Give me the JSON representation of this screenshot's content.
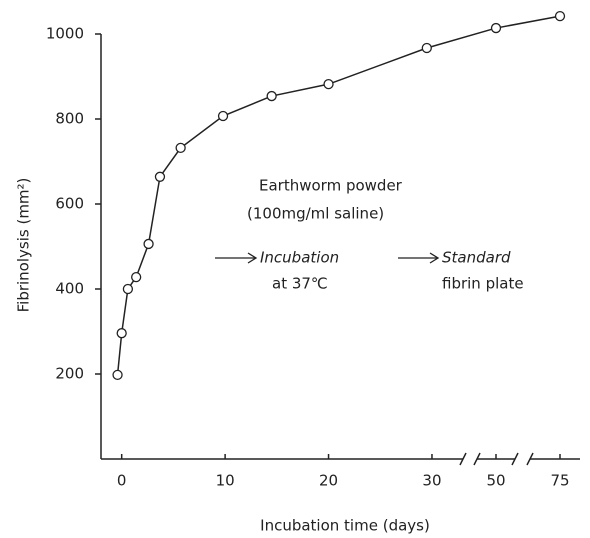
{
  "chart_data": {
    "type": "line",
    "y_label": "Fibrinolysis (mm²)",
    "x_label": "Incubation time (days)",
    "annotations": [
      "Earthworm powder",
      "(100mg/ml saline)",
      "Incubation",
      "at 37℃",
      "Standard",
      "fibrin plate"
    ],
    "x": [
      -0.4,
      0,
      0.6,
      1.4,
      2.6,
      3.7,
      5.7,
      9.8,
      14.5,
      20,
      29.5,
      50,
      75
    ],
    "series": [
      {
        "color": "#222222",
        "values": [
          198,
          296,
          400,
          428,
          506,
          664,
          732,
          807,
          854,
          882,
          967,
          1014,
          1042
        ]
      }
    ],
    "xlim": [
      -2,
      77
    ],
    "xbreaks": [
      [
        33,
        47
      ],
      [
        53,
        72
      ]
    ],
    "xticks": [
      0,
      10,
      20,
      30,
      50,
      75
    ],
    "ylim": [
      0,
      1000
    ],
    "yticks": [
      200,
      400,
      600,
      800,
      1000
    ]
  }
}
